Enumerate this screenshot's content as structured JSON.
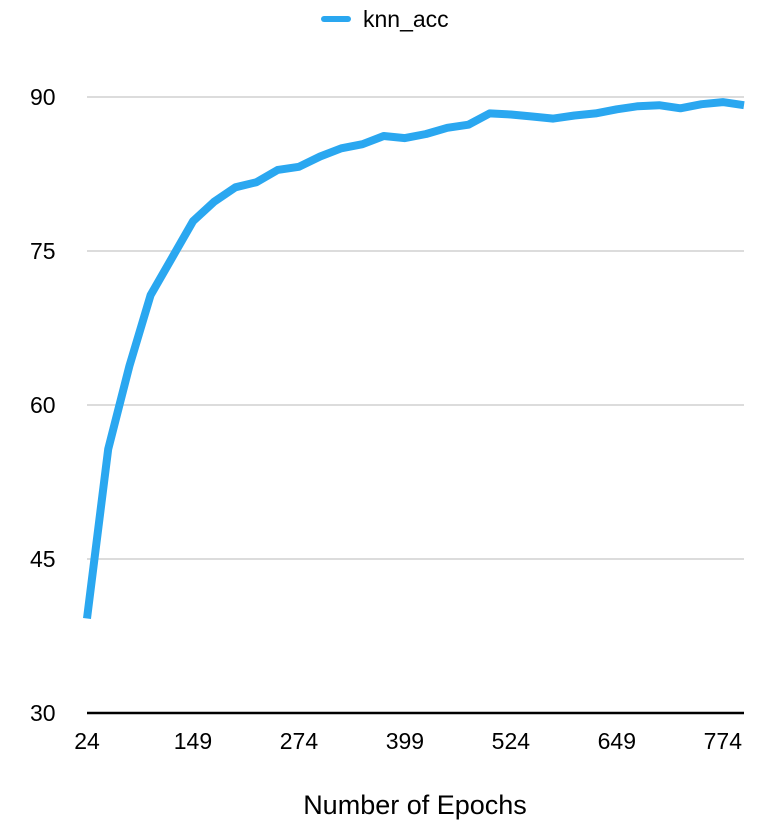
{
  "chart_data": {
    "type": "line",
    "title": "",
    "xlabel": "Number of Epochs",
    "ylabel": "",
    "x_tick_labels": [
      "24",
      "149",
      "274",
      "399",
      "524",
      "649",
      "774"
    ],
    "y_tick_labels": [
      "30",
      "45",
      "60",
      "75",
      "90"
    ],
    "xlim": [
      24,
      799
    ],
    "ylim": [
      30,
      90
    ],
    "grid": true,
    "legend_position": "top-center",
    "series": [
      {
        "name": "knn_acc",
        "color": "#2aa7f0",
        "x": [
          24,
          49,
          74,
          99,
          124,
          149,
          174,
          199,
          224,
          249,
          274,
          299,
          324,
          349,
          374,
          399,
          424,
          449,
          474,
          499,
          524,
          549,
          574,
          599,
          624,
          649,
          674,
          699,
          724,
          749,
          774,
          799
        ],
        "y": [
          39.2,
          55.7,
          63.8,
          70.7,
          74.3,
          77.9,
          79.8,
          81.2,
          81.7,
          82.9,
          83.2,
          84.2,
          85.0,
          85.4,
          86.2,
          86.0,
          86.4,
          87.0,
          87.3,
          88.4,
          88.3,
          88.1,
          87.9,
          88.2,
          88.4,
          88.8,
          89.1,
          89.2,
          88.9,
          89.3,
          89.5,
          89.2
        ]
      }
    ]
  }
}
